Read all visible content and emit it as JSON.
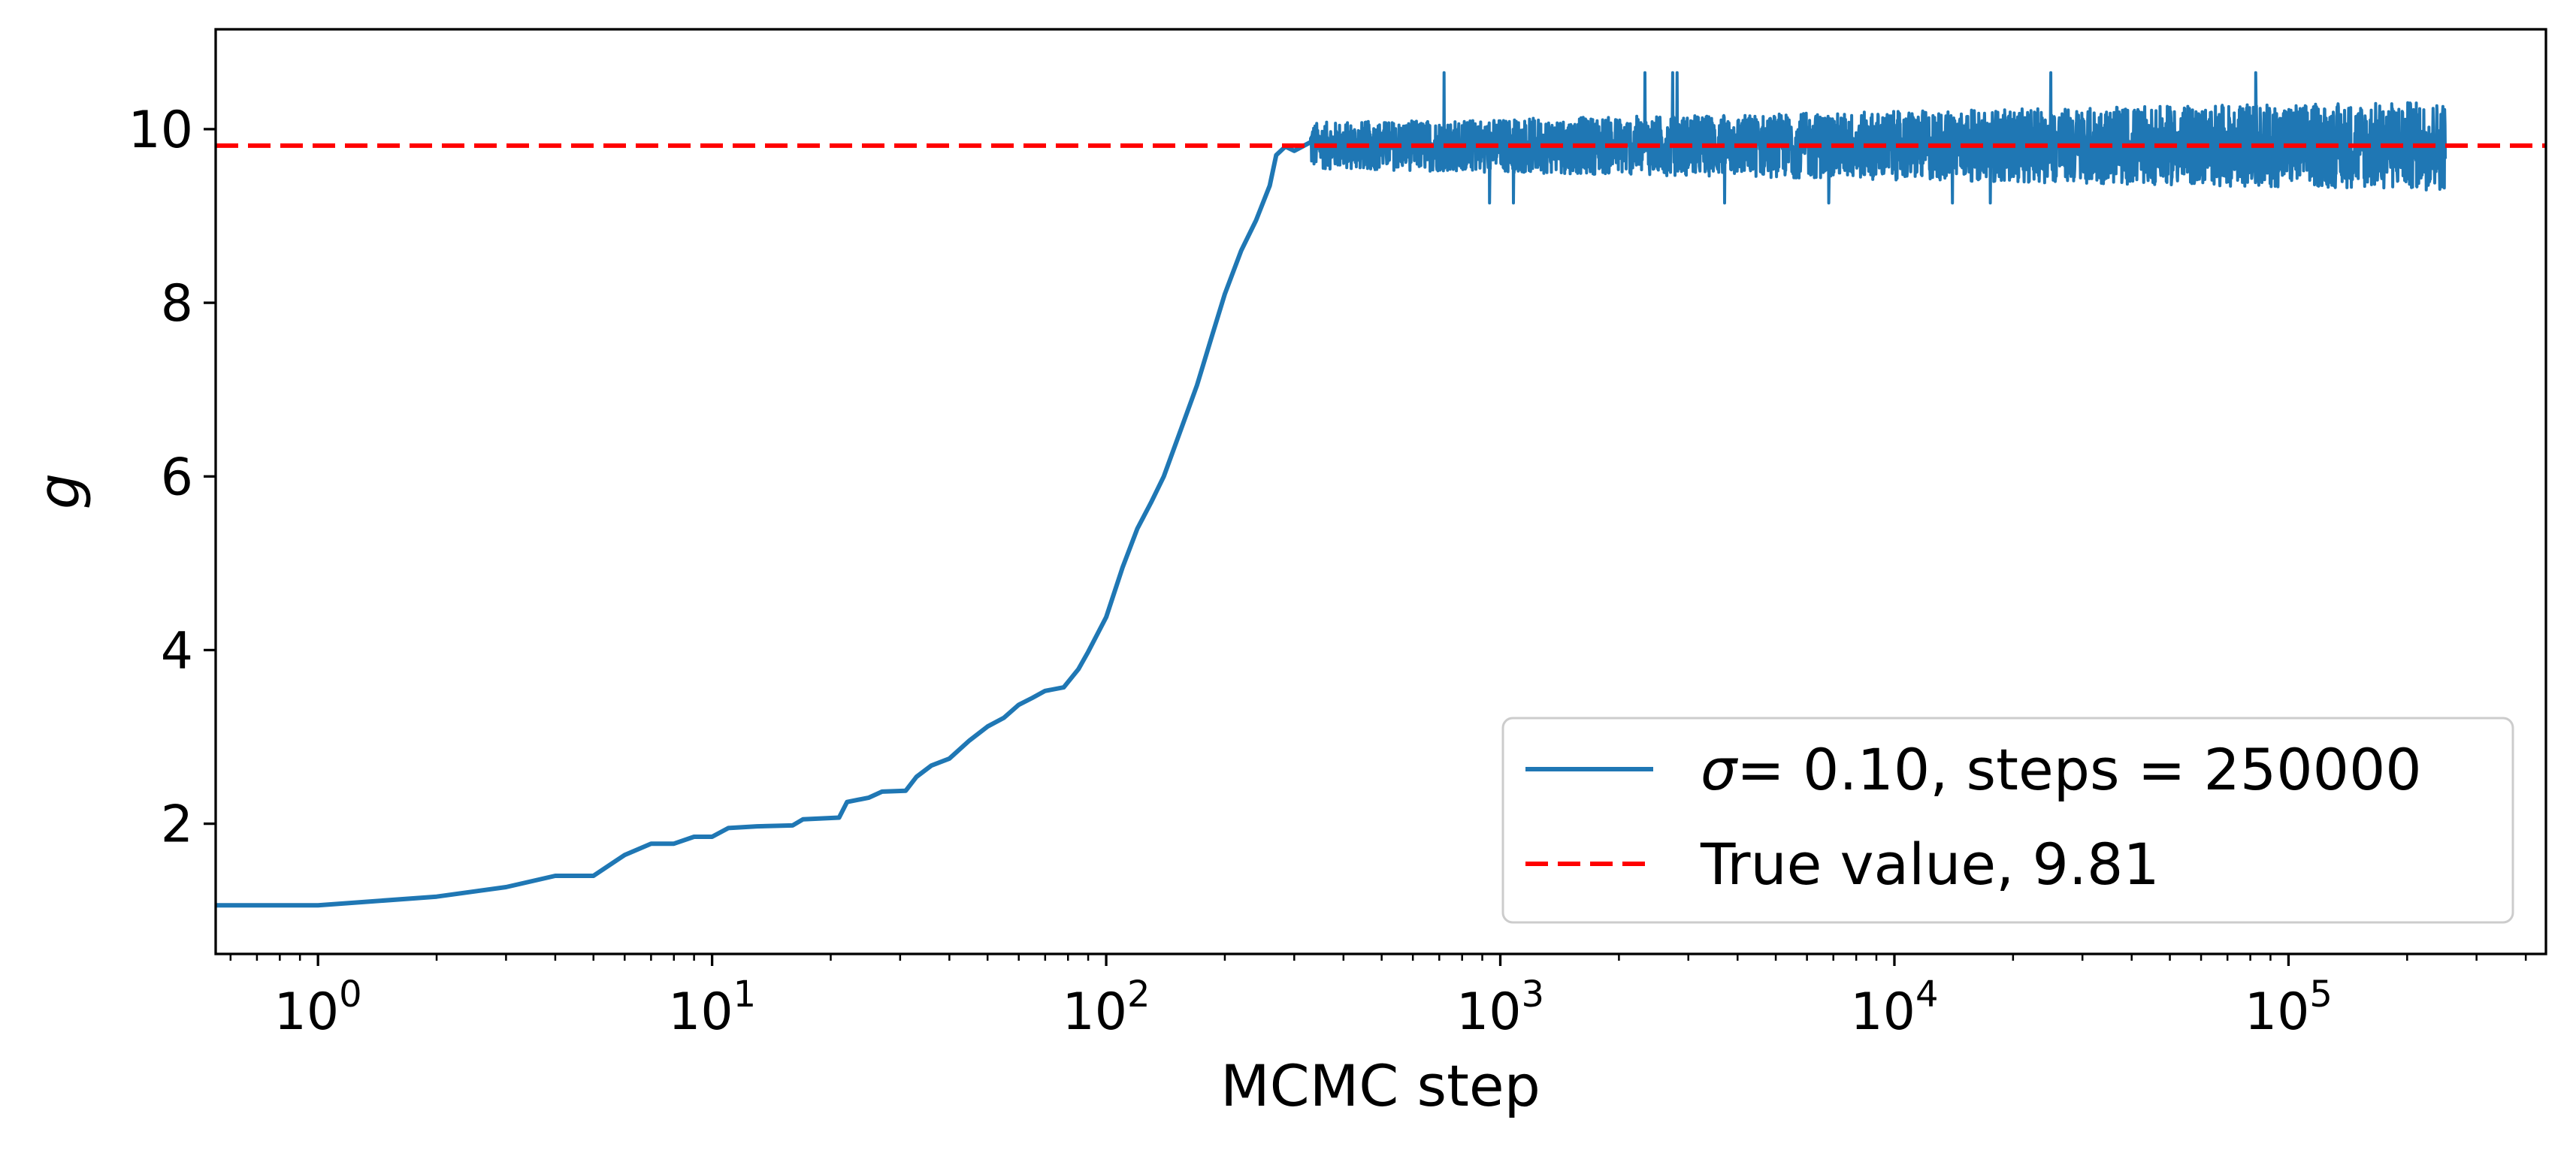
{
  "chart_data": {
    "type": "line",
    "xscale": "log",
    "xlabel": "MCMC step",
    "ylabel": "g",
    "xlim": [
      0.55,
      450000
    ],
    "ylim": [
      0.5,
      11.15
    ],
    "x_ticks": [
      {
        "value": 1,
        "base": "10",
        "exp": "0"
      },
      {
        "value": 10,
        "base": "10",
        "exp": "1"
      },
      {
        "value": 100,
        "base": "10",
        "exp": "2"
      },
      {
        "value": 1000,
        "base": "10",
        "exp": "3"
      },
      {
        "value": 10000,
        "base": "10",
        "exp": "4"
      },
      {
        "value": 100000,
        "base": "10",
        "exp": "5"
      }
    ],
    "y_ticks": [
      "2",
      "4",
      "6",
      "8",
      "10"
    ],
    "grid": false,
    "legend_position": "lower-right",
    "series": [
      {
        "name_symbol": "σ",
        "name": "= 0.10, steps = 250000",
        "color": "#1f77b4",
        "points": [
          [
            0.55,
            1.06
          ],
          [
            1,
            1.06
          ],
          [
            2,
            1.16
          ],
          [
            3,
            1.27
          ],
          [
            4,
            1.4
          ],
          [
            5,
            1.4
          ],
          [
            6,
            1.64
          ],
          [
            7,
            1.77
          ],
          [
            8,
            1.77
          ],
          [
            9,
            1.85
          ],
          [
            10,
            1.85
          ],
          [
            11,
            1.95
          ],
          [
            13,
            1.97
          ],
          [
            16,
            1.98
          ],
          [
            17,
            2.05
          ],
          [
            21,
            2.07
          ],
          [
            22,
            2.25
          ],
          [
            25,
            2.3
          ],
          [
            27,
            2.37
          ],
          [
            31,
            2.38
          ],
          [
            33,
            2.54
          ],
          [
            36,
            2.67
          ],
          [
            40,
            2.75
          ],
          [
            45,
            2.96
          ],
          [
            50,
            3.12
          ],
          [
            55,
            3.22
          ],
          [
            60,
            3.37
          ],
          [
            65,
            3.45
          ],
          [
            70,
            3.53
          ],
          [
            78,
            3.57
          ],
          [
            85,
            3.78
          ],
          [
            90,
            3.98
          ],
          [
            100,
            4.38
          ],
          [
            110,
            4.95
          ],
          [
            120,
            5.4
          ],
          [
            130,
            5.7
          ],
          [
            140,
            6.0
          ],
          [
            155,
            6.55
          ],
          [
            170,
            7.05
          ],
          [
            185,
            7.6
          ],
          [
            200,
            8.1
          ],
          [
            220,
            8.6
          ],
          [
            240,
            8.95
          ],
          [
            260,
            9.35
          ],
          [
            270,
            9.7
          ],
          [
            285,
            9.8
          ],
          [
            300,
            9.75
          ],
          [
            330,
            9.85
          ]
        ],
        "stationary": {
          "x_start": 330,
          "x_end": 250000,
          "mean": 9.81,
          "band_low": 9.3,
          "band_high": 10.3,
          "max_spike": 10.65,
          "min_spike": 9.15
        }
      },
      {
        "name": "True value, 9.81",
        "color": "#ff0000",
        "style": "dashed",
        "value": 9.81
      }
    ]
  }
}
